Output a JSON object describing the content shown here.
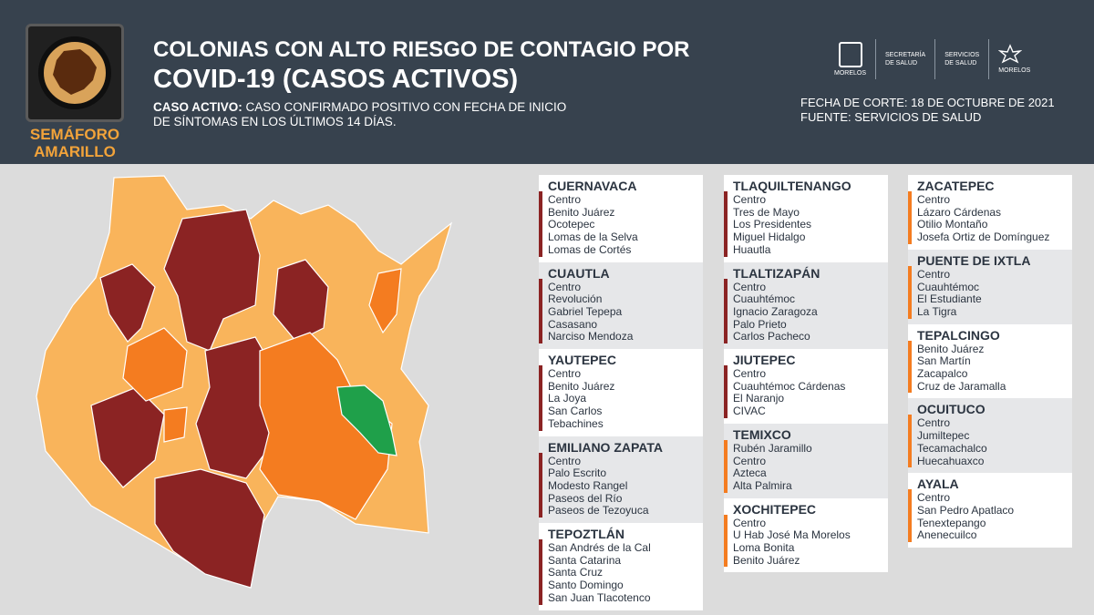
{
  "header": {
    "title_line1": "COLONIAS CON ALTO RIESGO DE CONTAGIO POR",
    "title_line2": "COVID-19 (CASOS ACTIVOS)",
    "caso_label": "CASO ACTIVO:",
    "caso_text": " CASO CONFIRMADO POSITIVO CON FECHA DE INICIO DE SÍNTOMAS EN LOS ÚLTIMOS 14 DÍAS.",
    "fecha": "FECHA DE CORTE: 18 DE OCTUBRE DE 2021",
    "fuente": "FUENTE: SERVICIOS DE SALUD",
    "semaforo_line1": "SEMÁFORO",
    "semaforo_line2": "AMARILLO",
    "logos": {
      "morelos": "MORELOS",
      "secretaria_1": "SECRETARÍA",
      "secretaria_2": "DE SALUD",
      "servicios_1": "SERVICIOS",
      "servicios_2": "DE SALUD",
      "modelos": "MORELOS"
    }
  },
  "colors": {
    "header_bg": "#37424e",
    "maroon": "#8b2323",
    "orange": "#f47c20",
    "light_orange": "#f9b45b",
    "green": "#1fa04a",
    "accent_yellow": "#f2a33a"
  },
  "columns": [
    [
      {
        "name": "CUERNAVACA",
        "color": "#8b2323",
        "items": [
          "Centro",
          "Benito Juárez",
          "Ocotepec",
          "Lomas de la Selva",
          "Lomas de Cortés"
        ]
      },
      {
        "name": "CUAUTLA",
        "color": "#8b2323",
        "items": [
          "Centro",
          "Revolución",
          "Gabriel Tepepa",
          "Casasano",
          "Narciso Mendoza"
        ]
      },
      {
        "name": "YAUTEPEC",
        "color": "#8b2323",
        "items": [
          "Centro",
          "Benito Juárez",
          "La Joya",
          "San Carlos",
          "Tebachines"
        ]
      },
      {
        "name": "EMILIANO ZAPATA",
        "color": "#8b2323",
        "items": [
          "Centro",
          "Palo Escrito",
          "Modesto Rangel",
          "Paseos del Río",
          "Paseos de Tezoyuca"
        ]
      },
      {
        "name": "TEPOZTLÁN",
        "color": "#8b2323",
        "items": [
          "San Andrés de la Cal",
          "Santa Catarina",
          "Santa Cruz",
          "Santo Domingo",
          "San Juan Tlacotenco"
        ]
      }
    ],
    [
      {
        "name": "TLAQUILTENANGO",
        "color": "#8b2323",
        "items": [
          "Centro",
          "Tres de Mayo",
          "Los Presidentes",
          "Miguel Hidalgo",
          "Huautla"
        ]
      },
      {
        "name": "TLALTIZAPÁN",
        "color": "#8b2323",
        "items": [
          "Centro",
          "Cuauhtémoc",
          "Ignacio Zaragoza",
          "Palo Prieto",
          "Carlos Pacheco"
        ]
      },
      {
        "name": "JIUTEPEC",
        "color": "#8b2323",
        "items": [
          "Centro",
          "Cuauhtémoc Cárdenas",
          "El Naranjo",
          "CIVAC"
        ]
      },
      {
        "name": "TEMIXCO",
        "color": "#f47c20",
        "items": [
          "Rubén Jaramillo",
          "Centro",
          "Azteca",
          "Alta Palmira"
        ]
      },
      {
        "name": "XOCHITEPEC",
        "color": "#f47c20",
        "items": [
          "Centro",
          "U Hab José Ma Morelos",
          "Loma Bonita",
          "Benito Juárez"
        ]
      }
    ],
    [
      {
        "name": "ZACATEPEC",
        "color": "#f47c20",
        "items": [
          "Centro",
          "Lázaro Cárdenas",
          "Otilio Montaño",
          "Josefa Ortiz de Domínguez"
        ]
      },
      {
        "name": "PUENTE DE IXTLA",
        "color": "#f47c20",
        "items": [
          "Centro",
          "Cuauhtémoc",
          "El Estudiante",
          "La Tigra"
        ]
      },
      {
        "name": "TEPALCINGO",
        "color": "#f47c20",
        "items": [
          "Benito Juárez",
          "San Martín",
          "Zacapalco",
          "Cruz de Jaramalla"
        ]
      },
      {
        "name": "OCUITUCO",
        "color": "#f47c20",
        "items": [
          "Centro",
          "Jumiltepec",
          "Tecamachalco",
          "Huecahuaxco"
        ]
      },
      {
        "name": "AYALA",
        "color": "#f47c20",
        "items": [
          "Centro",
          "San Pedro Apatlaco",
          "Tenextepango",
          "Anenecuilco"
        ]
      }
    ]
  ]
}
